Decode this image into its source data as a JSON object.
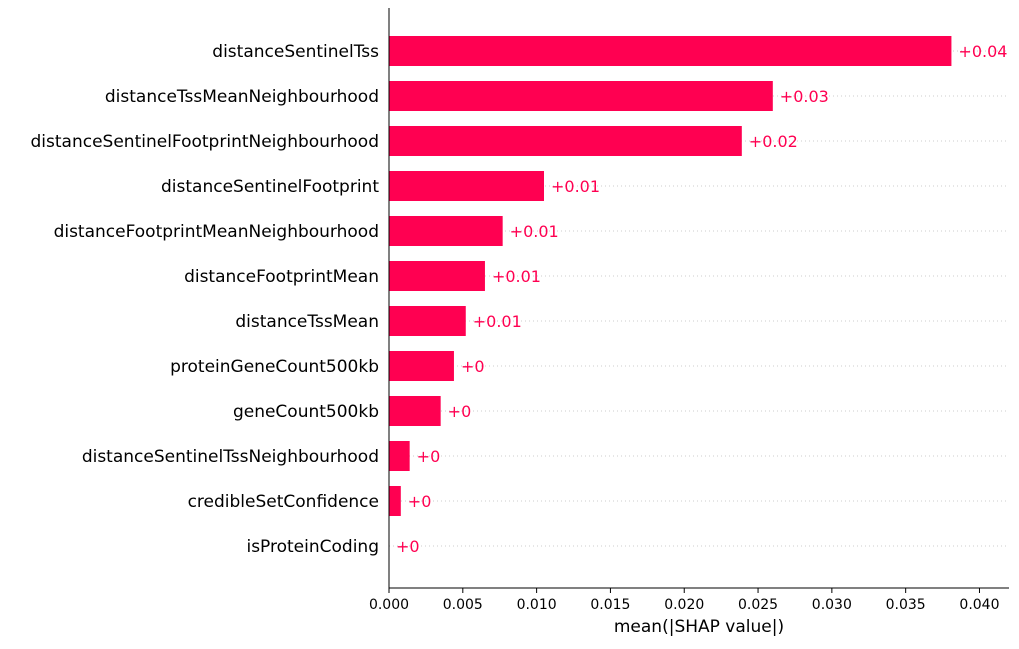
{
  "chart_data": {
    "type": "bar",
    "orientation": "horizontal",
    "categories": [
      "distanceSentinelTss",
      "distanceTssMeanNeighbourhood",
      "distanceSentinelFootprintNeighbourhood",
      "distanceSentinelFootprint",
      "distanceFootprintMeanNeighbourhood",
      "distanceFootprintMean",
      "distanceTssMean",
      "proteinGeneCount500kb",
      "geneCount500kb",
      "distanceSentinelTssNeighbourhood",
      "credibleSetConfidence",
      "isProteinCoding"
    ],
    "values": [
      0.0381,
      0.026,
      0.0239,
      0.0105,
      0.0077,
      0.0065,
      0.0052,
      0.0044,
      0.0035,
      0.0014,
      0.0008,
      0.0
    ],
    "value_labels": [
      "+0.04",
      "+0.03",
      "+0.02",
      "+0.01",
      "+0.01",
      "+0.01",
      "+0.01",
      "+0",
      "+0",
      "+0",
      "+0",
      "+0"
    ],
    "xlabel": "mean(|SHAP value|)",
    "ylabel": "",
    "title": "",
    "xlim": [
      0.0,
      0.042
    ],
    "xticks": [
      0.0,
      0.005,
      0.01,
      0.015,
      0.02,
      0.025,
      0.03,
      0.035,
      0.04
    ],
    "xtick_labels": [
      "0.000",
      "0.005",
      "0.010",
      "0.015",
      "0.020",
      "0.025",
      "0.030",
      "0.035",
      "0.040"
    ],
    "grid": "dotted horizontal row guides",
    "legend": "none",
    "colors": {
      "bar": "#ff0051",
      "value_label": "#ff0051",
      "axis": "#000000",
      "text": "#000000",
      "guide": "#cccccc"
    }
  }
}
